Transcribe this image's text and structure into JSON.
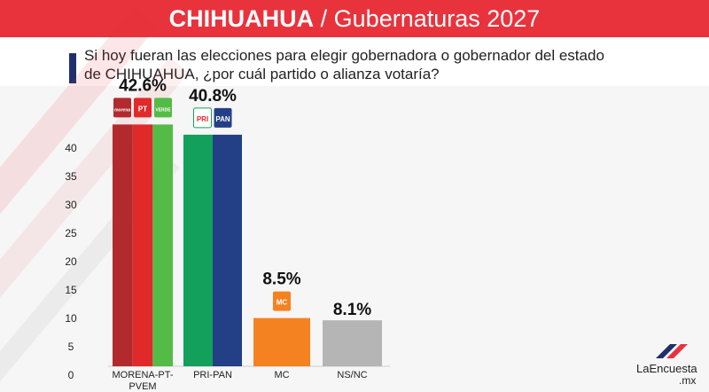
{
  "header": {
    "title_bold": "CHIHUAHUA",
    "title_rest": " / Gubernaturas 2027"
  },
  "question": "Si hoy fueran las elecciones para elegir gobernadora o gobernador del estado de CHIHUAHUA, ¿por cuál partido o alianza votaría?",
  "brand": {
    "name": "LaEncuesta",
    "suffix": ".mx"
  },
  "colors": {
    "header_red": "#e8333d",
    "morena": "#b22a2e",
    "pt": "#e02a2a",
    "verde": "#55bb47",
    "pri": "#12a05a",
    "pan": "#233f86",
    "mc": "#f58220",
    "nsnc": "#b5b5b5"
  },
  "party_logos": [
    {
      "name": "morena",
      "text": "morena",
      "color": "#b22a2e"
    },
    {
      "name": "pt",
      "text": "PT",
      "color": "#e02a2a"
    },
    {
      "name": "verde",
      "text": "VERDE",
      "color": "#55bb47"
    },
    {
      "name": "pri",
      "text": "PRI",
      "color": "#ffffff"
    },
    {
      "name": "pan",
      "text": "PAN",
      "color": "#233f86"
    },
    {
      "name": "mc",
      "text": "MC",
      "color": "#f58220"
    }
  ],
  "chart_data": {
    "type": "bar",
    "title": "",
    "xlabel": "",
    "ylabel": "",
    "ylim": [
      0,
      40
    ],
    "yticks": [
      0,
      5,
      10,
      15,
      20,
      25,
      30,
      35,
      40
    ],
    "grid": false,
    "categories": [
      "MORENA-PT-\nPVEM",
      "PRI-PAN",
      "MC",
      "NS/NC"
    ],
    "values": [
      42.6,
      40.8,
      8.5,
      8.1
    ],
    "value_labels": [
      "42.6%",
      "40.8%",
      "8.5%",
      "8.1%"
    ],
    "bar_segments": [
      [
        "#b22a2e",
        "#e02a2a",
        "#55bb47"
      ],
      [
        "#12a05a",
        "#233f86"
      ],
      [
        "#f58220"
      ],
      [
        "#b5b5b5"
      ]
    ]
  }
}
